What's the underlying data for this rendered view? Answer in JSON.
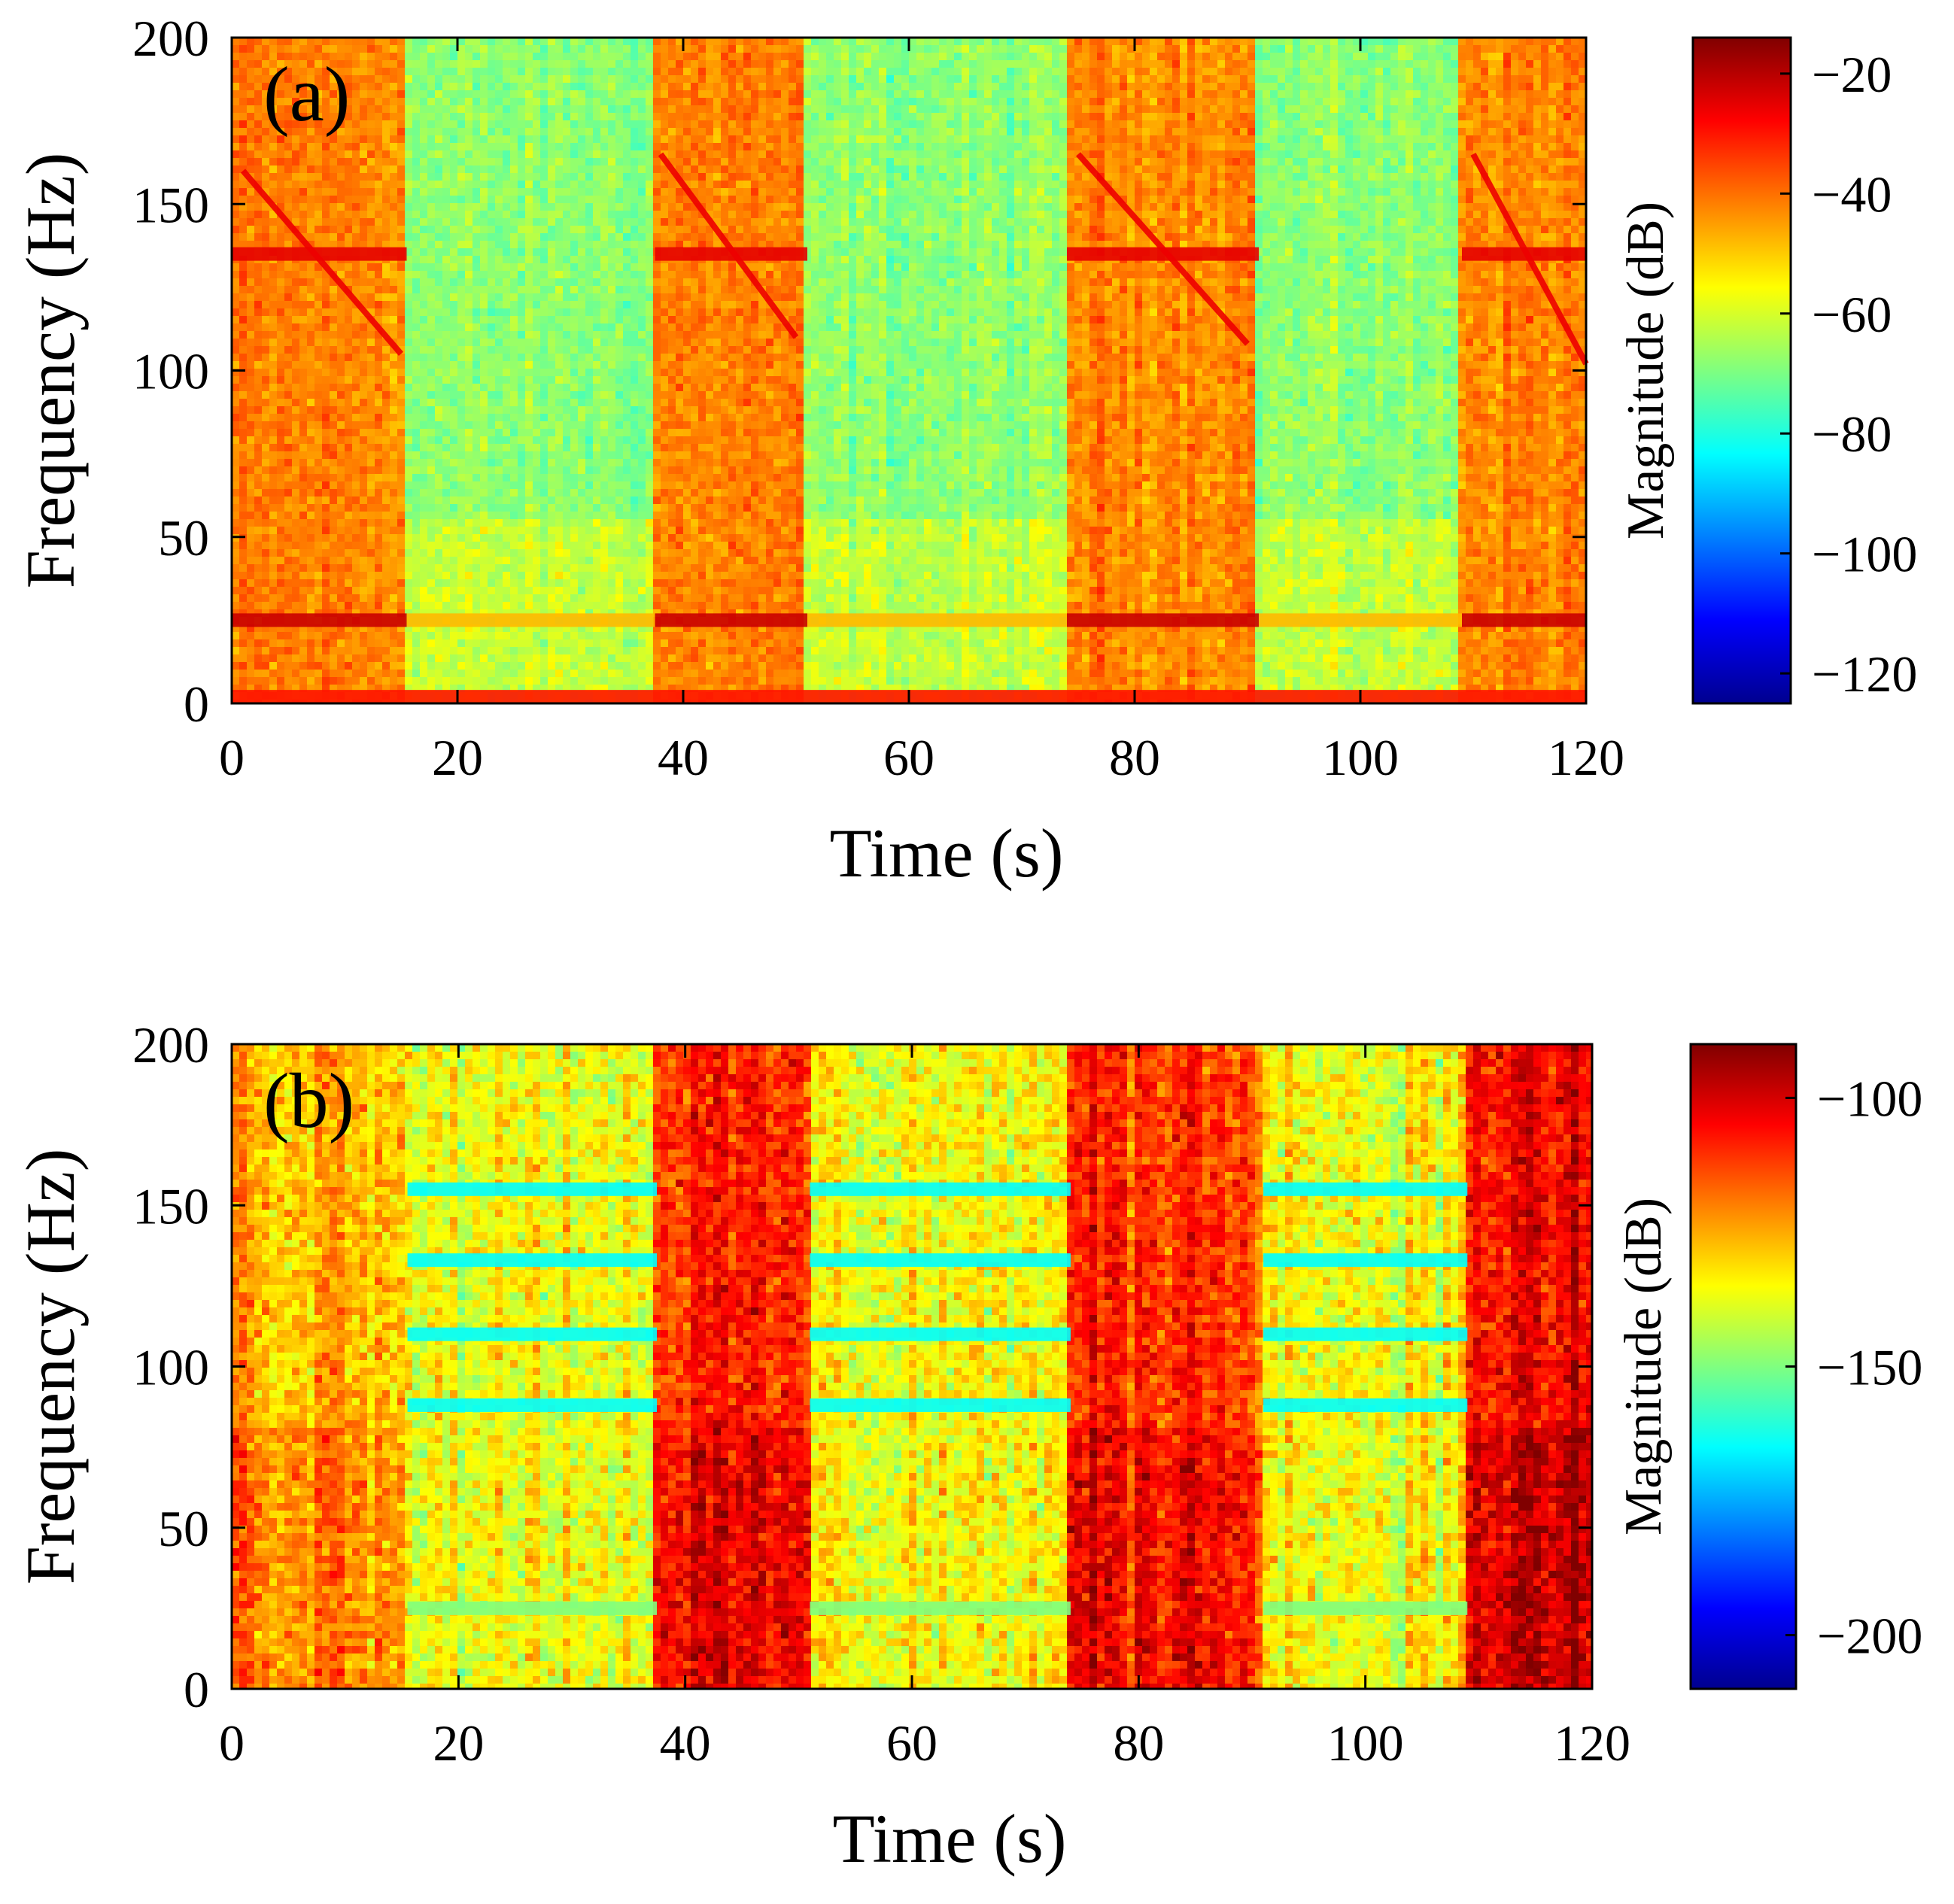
{
  "chart_data": [
    {
      "type": "heatmap",
      "panel_label": "(a)",
      "xlabel": "Time (s)",
      "ylabel": "Frequency (Hz)",
      "xlim": [
        0,
        120
      ],
      "ylim": [
        0,
        200
      ],
      "xticks": [
        0,
        20,
        40,
        60,
        80,
        100,
        120
      ],
      "yticks": [
        0,
        50,
        100,
        150,
        200
      ],
      "colorbar": {
        "label": "Magnitude (dB)",
        "range": [
          -125,
          -14
        ],
        "ticks": [
          -20,
          -40,
          -60,
          -80,
          -100,
          -120
        ],
        "tick_labels": [
          "−20",
          "−40",
          "−60",
          "−80",
          "−100",
          "−120"
        ]
      },
      "segments": [
        {
          "t_start": 0,
          "t_end": 15.5,
          "state": "high",
          "level_db": -42
        },
        {
          "t_start": 15.5,
          "t_end": 37.5,
          "state": "low",
          "level_db": -68
        },
        {
          "t_start": 37.5,
          "t_end": 51,
          "state": "high",
          "level_db": -42
        },
        {
          "t_start": 51,
          "t_end": 74,
          "state": "low",
          "level_db": -68
        },
        {
          "t_start": 74,
          "t_end": 91,
          "state": "high",
          "level_db": -42
        },
        {
          "t_start": 91,
          "t_end": 109,
          "state": "low",
          "level_db": -68
        },
        {
          "t_start": 109,
          "t_end": 120,
          "state": "high",
          "level_db": -42
        }
      ],
      "bands": [
        {
          "freq_hz": 25,
          "level_db": -22,
          "segments": "high"
        },
        {
          "freq_hz": 135,
          "level_db": -25,
          "segments": "high"
        },
        {
          "freq_hz": 25,
          "level_db": -48,
          "segments": "low"
        },
        {
          "freq_hz": 2,
          "level_db": -30,
          "segments": "all"
        }
      ],
      "sweeps": [
        {
          "t_start": 1,
          "t_end": 15,
          "f_start": 160,
          "f_end": 105
        },
        {
          "t_start": 38,
          "t_end": 50,
          "f_start": 165,
          "f_end": 110
        },
        {
          "t_start": 75,
          "t_end": 90,
          "f_start": 165,
          "f_end": 108
        },
        {
          "t_start": 110,
          "t_end": 120,
          "f_start": 165,
          "f_end": 102
        }
      ]
    },
    {
      "type": "heatmap",
      "panel_label": "(b)",
      "xlabel": "Time (s)",
      "ylabel": "Frequency (Hz)",
      "xlim": [
        0,
        120
      ],
      "ylim": [
        0,
        200
      ],
      "xticks": [
        0,
        20,
        40,
        60,
        80,
        100,
        120
      ],
      "yticks": [
        0,
        50,
        100,
        150,
        200
      ],
      "colorbar": {
        "label": "Magnitude (dB)",
        "range": [
          -210,
          -90
        ],
        "ticks": [
          -100,
          -150,
          -200
        ],
        "tick_labels": [
          "−100",
          "−150",
          "−200"
        ]
      },
      "segments": [
        {
          "t_start": 0,
          "t_end": 15.5,
          "state": "high",
          "level_db": -125
        },
        {
          "t_start": 15.5,
          "t_end": 37.5,
          "state": "low",
          "level_db": -135
        },
        {
          "t_start": 37.5,
          "t_end": 51,
          "state": "high",
          "level_db": -110
        },
        {
          "t_start": 51,
          "t_end": 74,
          "state": "low",
          "level_db": -135
        },
        {
          "t_start": 74,
          "t_end": 91,
          "state": "high",
          "level_db": -110
        },
        {
          "t_start": 91,
          "t_end": 109,
          "state": "low",
          "level_db": -135
        },
        {
          "t_start": 109,
          "t_end": 120,
          "state": "high",
          "level_db": -105
        }
      ],
      "bands": [
        {
          "freq_hz": 155,
          "level_db": -165,
          "segments": "low"
        },
        {
          "freq_hz": 133,
          "level_db": -165,
          "segments": "low"
        },
        {
          "freq_hz": 110,
          "level_db": -165,
          "segments": "low"
        },
        {
          "freq_hz": 88,
          "level_db": -165,
          "segments": "low"
        },
        {
          "freq_hz": 25,
          "level_db": -150,
          "segments": "low"
        }
      ],
      "sweeps": []
    }
  ]
}
